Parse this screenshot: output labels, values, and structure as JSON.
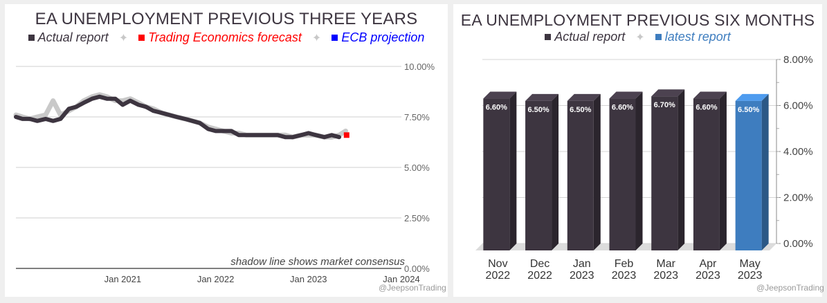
{
  "chart_data": [
    {
      "type": "line",
      "title": "EA UNEMPLOYMENT PREVIOUS THREE YEARS",
      "legend": [
        {
          "label": "Actual report",
          "color": "#3d3540"
        },
        {
          "label": "Trading Economics forecast",
          "color": "#ff0000"
        },
        {
          "label": "ECB projection",
          "color": "#0000ff"
        }
      ],
      "legend_separator": "✦",
      "ylim": [
        0,
        10
      ],
      "yticks": [
        {
          "value": 10,
          "label": "10.00%"
        },
        {
          "value": 7.5,
          "label": "7.50%"
        },
        {
          "value": 5,
          "label": "5.00%"
        },
        {
          "value": 2.5,
          "label": "2.50%"
        },
        {
          "value": 0,
          "label": "0.00%"
        }
      ],
      "xlim": [
        2019.85,
        2024.0
      ],
      "xticks": [
        {
          "value": 2021.0,
          "label": "Jan 2021"
        },
        {
          "value": 2022.0,
          "label": "Jan 2022"
        },
        {
          "value": 2023.0,
          "label": "Jan 2023"
        },
        {
          "value": 2024.0,
          "label": "Jan 2024"
        }
      ],
      "series": [
        {
          "name": "Actual report",
          "color": "#3d3540",
          "x": [
            2019.85,
            2019.92,
            2020.0,
            2020.08,
            2020.17,
            2020.25,
            2020.33,
            2020.42,
            2020.5,
            2020.58,
            2020.67,
            2020.75,
            2020.83,
            2020.92,
            2021.0,
            2021.08,
            2021.17,
            2021.25,
            2021.33,
            2021.42,
            2021.5,
            2021.58,
            2021.67,
            2021.75,
            2021.83,
            2021.92,
            2022.0,
            2022.08,
            2022.17,
            2022.25,
            2022.33,
            2022.42,
            2022.5,
            2022.58,
            2022.67,
            2022.75,
            2022.83,
            2022.92,
            2023.0,
            2023.08,
            2023.17,
            2023.25,
            2023.33
          ],
          "values": [
            7.5,
            7.4,
            7.4,
            7.3,
            7.4,
            7.3,
            7.4,
            7.9,
            8.0,
            8.2,
            8.4,
            8.5,
            8.4,
            8.4,
            8.1,
            8.3,
            8.1,
            8.0,
            7.8,
            7.7,
            7.6,
            7.5,
            7.4,
            7.3,
            7.2,
            6.9,
            6.8,
            6.8,
            6.8,
            6.6,
            6.6,
            6.6,
            6.6,
            6.6,
            6.6,
            6.5,
            6.5,
            6.6,
            6.7,
            6.6,
            6.5,
            6.6,
            6.5
          ]
        },
        {
          "name": "Market consensus",
          "color": "#c9c9c9",
          "x": [
            2019.85,
            2019.92,
            2020.0,
            2020.08,
            2020.17,
            2020.25,
            2020.33,
            2020.42,
            2020.5,
            2020.58,
            2020.67,
            2020.75,
            2020.83,
            2020.92,
            2021.0,
            2021.08,
            2021.17,
            2021.25,
            2021.33,
            2021.42,
            2021.5,
            2021.58,
            2021.67,
            2021.75,
            2021.83,
            2021.92,
            2022.0,
            2022.08,
            2022.17,
            2022.25,
            2022.33,
            2022.42,
            2022.5,
            2022.58,
            2022.67,
            2022.75,
            2022.83,
            2022.92,
            2023.0,
            2023.08,
            2023.17,
            2023.25,
            2023.33,
            2023.4
          ],
          "values": [
            7.6,
            7.5,
            7.4,
            7.5,
            7.6,
            8.3,
            7.6,
            7.8,
            8.0,
            8.3,
            8.5,
            8.6,
            8.5,
            8.3,
            8.3,
            8.4,
            8.2,
            8.0,
            7.9,
            7.7,
            7.6,
            7.5,
            7.4,
            7.3,
            7.2,
            7.0,
            6.9,
            6.8,
            6.7,
            6.7,
            6.6,
            6.6,
            6.6,
            6.6,
            6.6,
            6.6,
            6.5,
            6.6,
            6.6,
            6.6,
            6.5,
            6.5,
            6.6,
            6.8
          ]
        },
        {
          "name": "Trading Economics forecast",
          "color": "#ff0000",
          "x": [
            2023.41
          ],
          "values": [
            6.6
          ]
        }
      ],
      "annotation": "shadow line shows market consensus",
      "watermark": "@JeepsonTrading"
    },
    {
      "type": "bar",
      "title": "EA UNEMPLOYMENT PREVIOUS SIX MONTHS",
      "legend": [
        {
          "label": "Actual report",
          "color": "#3d3540"
        },
        {
          "label": "latest report",
          "color": "#3e7dbf"
        }
      ],
      "legend_separator": "✦",
      "ylim": [
        0,
        8
      ],
      "yticks": [
        {
          "value": 8,
          "label": "8.00%"
        },
        {
          "value": 6,
          "label": "6.00%"
        },
        {
          "value": 4,
          "label": "4.00%"
        },
        {
          "value": 2,
          "label": "2.00%"
        },
        {
          "value": 0,
          "label": "0.00%"
        }
      ],
      "categories": [
        {
          "month": "Nov",
          "year": "2022"
        },
        {
          "month": "Dec",
          "year": "2022"
        },
        {
          "month": "Jan",
          "year": "2023"
        },
        {
          "month": "Feb",
          "year": "2023"
        },
        {
          "month": "Mar",
          "year": "2023"
        },
        {
          "month": "Apr",
          "year": "2023"
        },
        {
          "month": "May",
          "year": "2023"
        }
      ],
      "values": [
        6.6,
        6.5,
        6.5,
        6.6,
        6.7,
        6.6,
        6.5
      ],
      "labels": [
        "6.60%",
        "6.50%",
        "6.50%",
        "6.60%",
        "6.70%",
        "6.60%",
        "6.50%"
      ],
      "colors": [
        "#3d3540",
        "#3d3540",
        "#3d3540",
        "#3d3540",
        "#3d3540",
        "#3d3540",
        "#3e7dbf"
      ],
      "watermark": "@JeepsonTrading"
    }
  ]
}
